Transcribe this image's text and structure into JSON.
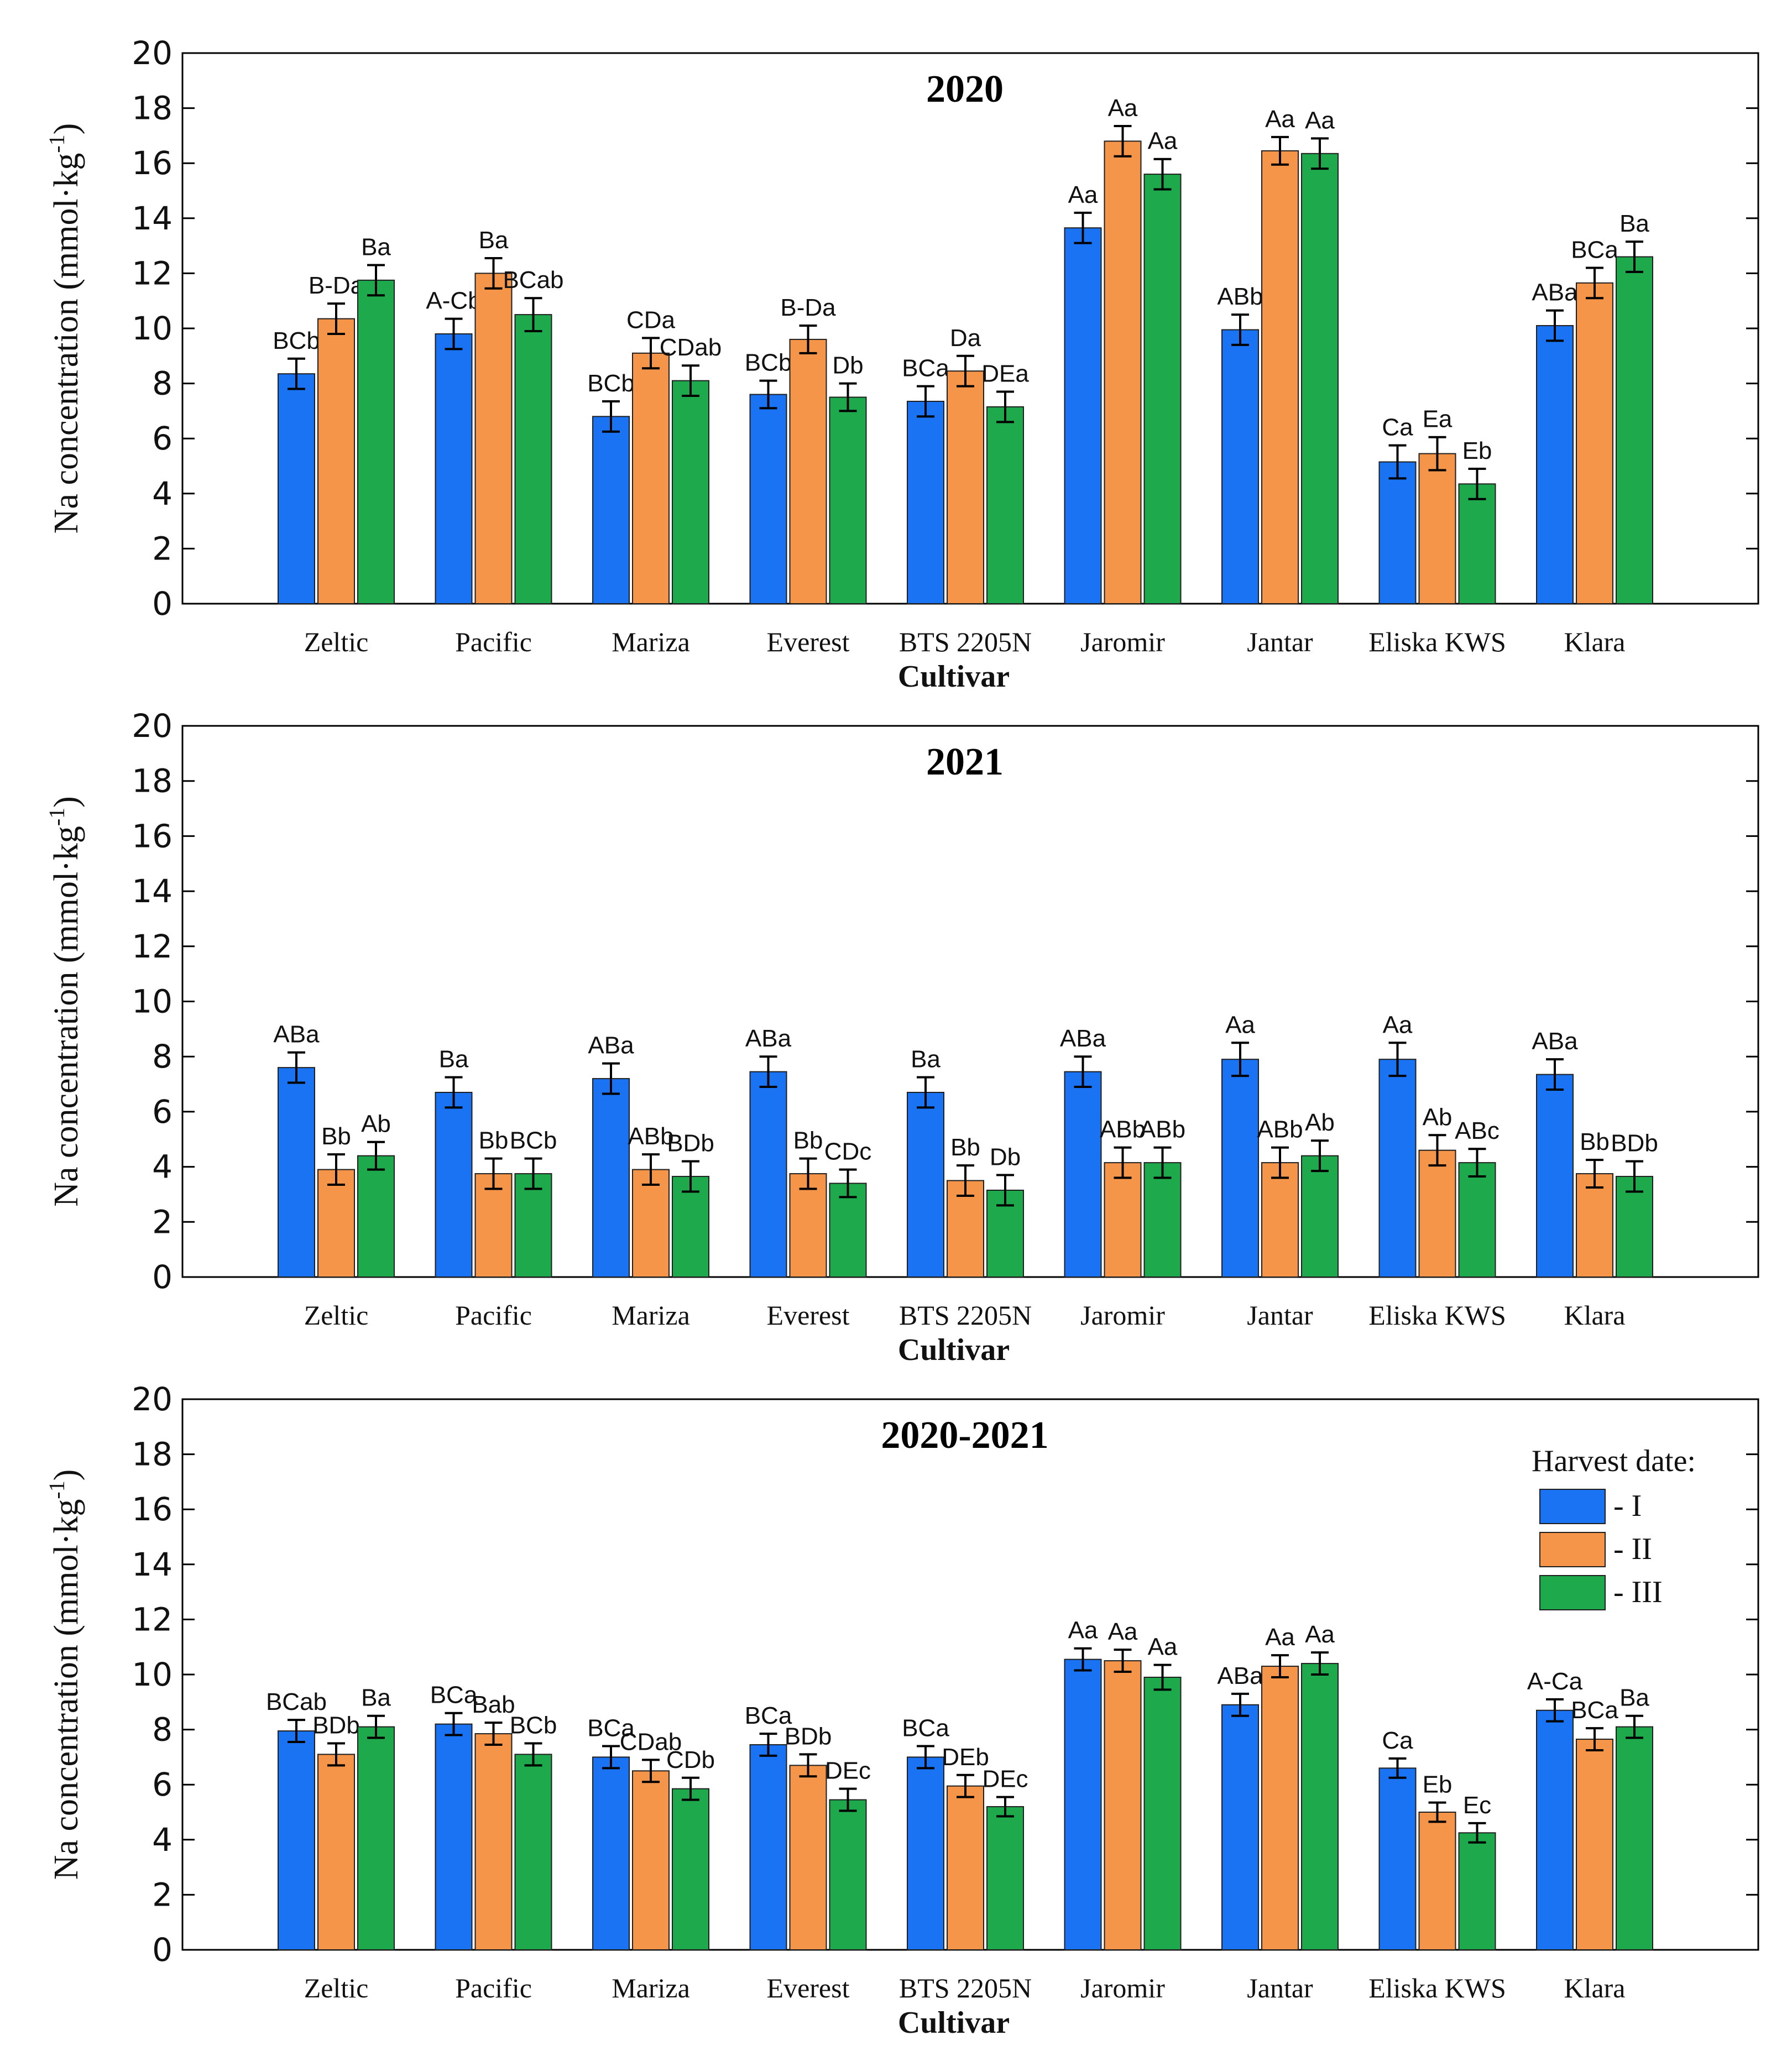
{
  "legend": {
    "title": "Harvest date:",
    "entries": [
      "- I",
      "- II",
      "- III"
    ]
  },
  "colors": {
    "series": [
      "#1a73f2",
      "#f5954a",
      "#1eaa4c"
    ],
    "edge": "#1f1f1f",
    "axis": "#000000"
  },
  "chart_data": [
    {
      "type": "bar",
      "title": "2020",
      "xlabel": "Cultivar",
      "ylabel": "Na concentration (mmol·kg",
      "ylabel_sup": "-1",
      "ylabel_end": ")",
      "ylim": [
        0,
        20
      ],
      "yticks": [
        0,
        2,
        4,
        6,
        8,
        10,
        12,
        14,
        16,
        18,
        20
      ],
      "categories": [
        "Zeltic",
        "Pacific",
        "Mariza",
        "Everest",
        "BTS 2205N",
        "Jaromir",
        "Jantar",
        "Eliska KWS",
        "Klara"
      ],
      "series": [
        {
          "values": [
            8.35,
            9.8,
            6.8,
            7.6,
            7.35,
            13.65,
            9.95,
            5.15,
            10.1
          ],
          "errors": [
            0.55,
            0.55,
            0.55,
            0.5,
            0.55,
            0.55,
            0.55,
            0.6,
            0.55
          ],
          "labels": [
            "BCb",
            "A-Cb",
            "BCb",
            "BCb",
            "BCa",
            "Aa",
            "ABb",
            "Ca",
            "ABa"
          ]
        },
        {
          "values": [
            10.35,
            12.0,
            9.1,
            9.6,
            8.45,
            16.8,
            16.45,
            5.45,
            11.65
          ],
          "errors": [
            0.55,
            0.55,
            0.55,
            0.5,
            0.55,
            0.55,
            0.5,
            0.6,
            0.55
          ],
          "labels": [
            "B-Da",
            "Ba",
            "CDa",
            "B-Da",
            "Da",
            "Aa",
            "Aa",
            "Ea",
            "BCa"
          ]
        },
        {
          "values": [
            11.75,
            10.5,
            8.1,
            7.5,
            7.15,
            15.6,
            16.35,
            4.35,
            12.6
          ],
          "errors": [
            0.55,
            0.6,
            0.55,
            0.5,
            0.55,
            0.55,
            0.55,
            0.55,
            0.55
          ],
          "labels": [
            "Ba",
            "BCab",
            "CDab",
            "Db",
            "DEa",
            "Aa",
            "Aa",
            "Eb",
            "Ba"
          ]
        }
      ]
    },
    {
      "type": "bar",
      "title": "2021",
      "xlabel": "Cultivar",
      "ylabel": "Na concentration (mmol·kg",
      "ylabel_sup": "-1",
      "ylabel_end": ")",
      "ylim": [
        0,
        20
      ],
      "yticks": [
        0,
        2,
        4,
        6,
        8,
        10,
        12,
        14,
        16,
        18,
        20
      ],
      "categories": [
        "Zeltic",
        "Pacific",
        "Mariza",
        "Everest",
        "BTS 2205N",
        "Jaromir",
        "Jantar",
        "Eliska KWS",
        "Klara"
      ],
      "series": [
        {
          "values": [
            7.6,
            6.7,
            7.2,
            7.45,
            6.7,
            7.45,
            7.9,
            7.9,
            7.35
          ],
          "errors": [
            0.55,
            0.55,
            0.55,
            0.55,
            0.55,
            0.55,
            0.6,
            0.6,
            0.55
          ],
          "labels": [
            "ABa",
            "Ba",
            "ABa",
            "ABa",
            "Ba",
            "ABa",
            "Aa",
            "Aa",
            "ABa"
          ]
        },
        {
          "values": [
            3.9,
            3.75,
            3.9,
            3.75,
            3.5,
            4.15,
            4.15,
            4.6,
            3.75
          ],
          "errors": [
            0.55,
            0.55,
            0.55,
            0.55,
            0.55,
            0.55,
            0.55,
            0.55,
            0.5
          ],
          "labels": [
            "Bb",
            "Bb",
            "ABb",
            "Bb",
            "Bb",
            "ABb",
            "ABb",
            "Ab",
            "Bb"
          ]
        },
        {
          "values": [
            4.4,
            3.75,
            3.65,
            3.4,
            3.15,
            4.15,
            4.4,
            4.15,
            3.65
          ],
          "errors": [
            0.5,
            0.55,
            0.55,
            0.5,
            0.55,
            0.55,
            0.55,
            0.5,
            0.55
          ],
          "labels": [
            "Ab",
            "BCb",
            "BDb",
            "CDc",
            "Db",
            "ABb",
            "Ab",
            "ABc",
            "BDb"
          ]
        }
      ]
    },
    {
      "type": "bar",
      "title": "2020-2021",
      "xlabel": "Cultivar",
      "ylabel": "Na concentration (mmol·kg",
      "ylabel_sup": "-1",
      "ylabel_end": ")",
      "ylim": [
        0,
        20
      ],
      "yticks": [
        0,
        2,
        4,
        6,
        8,
        10,
        12,
        14,
        16,
        18,
        20
      ],
      "legend_position": "top-right",
      "categories": [
        "Zeltic",
        "Pacific",
        "Mariza",
        "Everest",
        "BTS 2205N",
        "Jaromir",
        "Jantar",
        "Eliska KWS",
        "Klara"
      ],
      "series": [
        {
          "values": [
            7.95,
            8.2,
            7.0,
            7.45,
            7.0,
            10.55,
            8.9,
            6.6,
            8.7
          ],
          "errors": [
            0.4,
            0.4,
            0.4,
            0.4,
            0.4,
            0.4,
            0.4,
            0.35,
            0.4
          ],
          "labels": [
            "BCab",
            "BCa",
            "BCa",
            "BCa",
            "BCa",
            "Aa",
            "ABa",
            "Ca",
            "A-Ca"
          ]
        },
        {
          "values": [
            7.1,
            7.85,
            6.5,
            6.7,
            5.95,
            10.5,
            10.3,
            5.0,
            7.65
          ],
          "errors": [
            0.4,
            0.4,
            0.4,
            0.4,
            0.4,
            0.4,
            0.4,
            0.35,
            0.4
          ],
          "labels": [
            "BDb",
            "Bab",
            "CDab",
            "BDb",
            "DEb",
            "Aa",
            "Aa",
            "Eb",
            "BCa"
          ]
        },
        {
          "values": [
            8.1,
            7.1,
            5.85,
            5.45,
            5.2,
            9.9,
            10.4,
            4.25,
            8.1
          ],
          "errors": [
            0.4,
            0.4,
            0.4,
            0.4,
            0.35,
            0.45,
            0.4,
            0.35,
            0.4
          ],
          "labels": [
            "Ba",
            "BCb",
            "CDb",
            "DEc",
            "DEc",
            "Aa",
            "Aa",
            "Ec",
            "Ba"
          ]
        }
      ]
    }
  ]
}
